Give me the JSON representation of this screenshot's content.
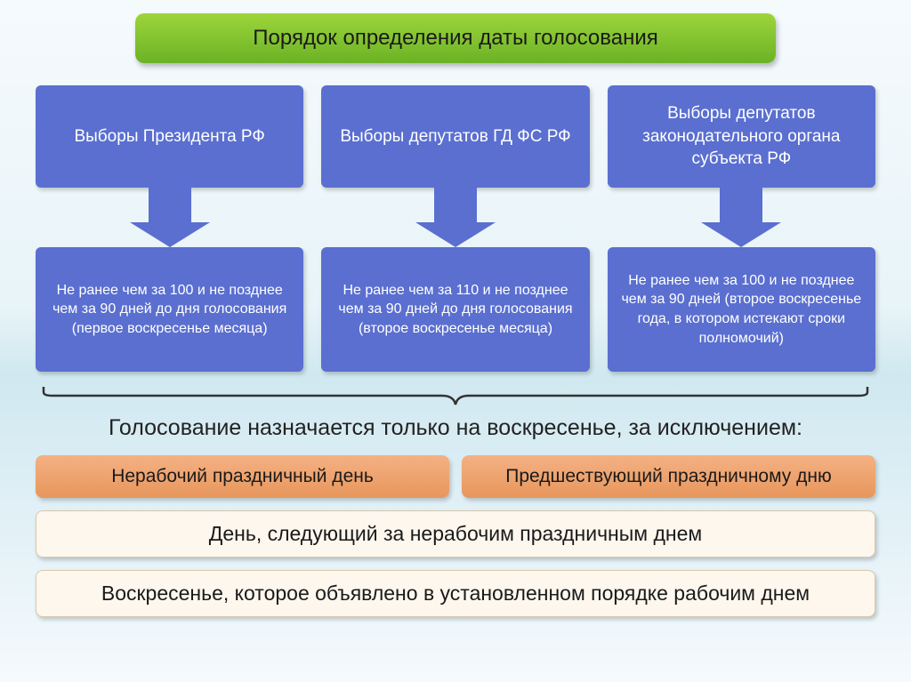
{
  "colors": {
    "title_bg_top": "#9dd53a",
    "title_bg_bottom": "#6bb226",
    "title_text": "#1a1a1a",
    "box_blue": "#5a6fd0",
    "box_blue_text": "#ffffff",
    "arrow_blue": "#5a6fd0",
    "exception_text": "#222222",
    "orange_top": "#f4b183",
    "orange_bottom": "#e8965c",
    "orange_text": "#1a1a1a",
    "wide_bg": "#fdf7ee",
    "wide_border": "#d9c9a8",
    "wide_text": "#1a1a1a",
    "bracket": "#333333"
  },
  "title": "Порядок определения даты голосования",
  "columns": [
    {
      "top": "Выборы Президента РФ",
      "bottom": "Не ранее чем за 100 и не позднее чем за 90 дней до дня голосования (первое воскресенье месяца)"
    },
    {
      "top": "Выборы депутатов ГД ФС РФ",
      "bottom": "Не ранее чем за 110 и не позднее чем за 90 дней до дня голосования (второе воскресенье месяца)"
    },
    {
      "top": "Выборы депутатов законодательного органа субъекта РФ",
      "bottom": "Не ранее чем за 100 и не позднее чем за 90 дней (второе воскресенье года, в котором истекают сроки полномочий)"
    }
  ],
  "exception_heading": "Голосование назначается только на воскресенье, за исключением:",
  "exceptions_row": [
    "Нерабочий праздничный день",
    "Предшествующий праздничному дню"
  ],
  "exception_wide1": "День, следующий за нерабочим праздничным днем",
  "exception_wide2": "Воскресенье, которое объявлено в установленном порядке рабочим днем",
  "layout": {
    "title_fontsize": 24,
    "top_box_fontsize": 19,
    "bottom_box_fontsize": 16,
    "exception_fontsize": 25,
    "orange_fontsize": 21,
    "wide_fontsize": 23,
    "arrow_stem_w": 48,
    "arrow_stem_h": 40,
    "arrow_head_w": 90,
    "arrow_head_h": 28
  }
}
